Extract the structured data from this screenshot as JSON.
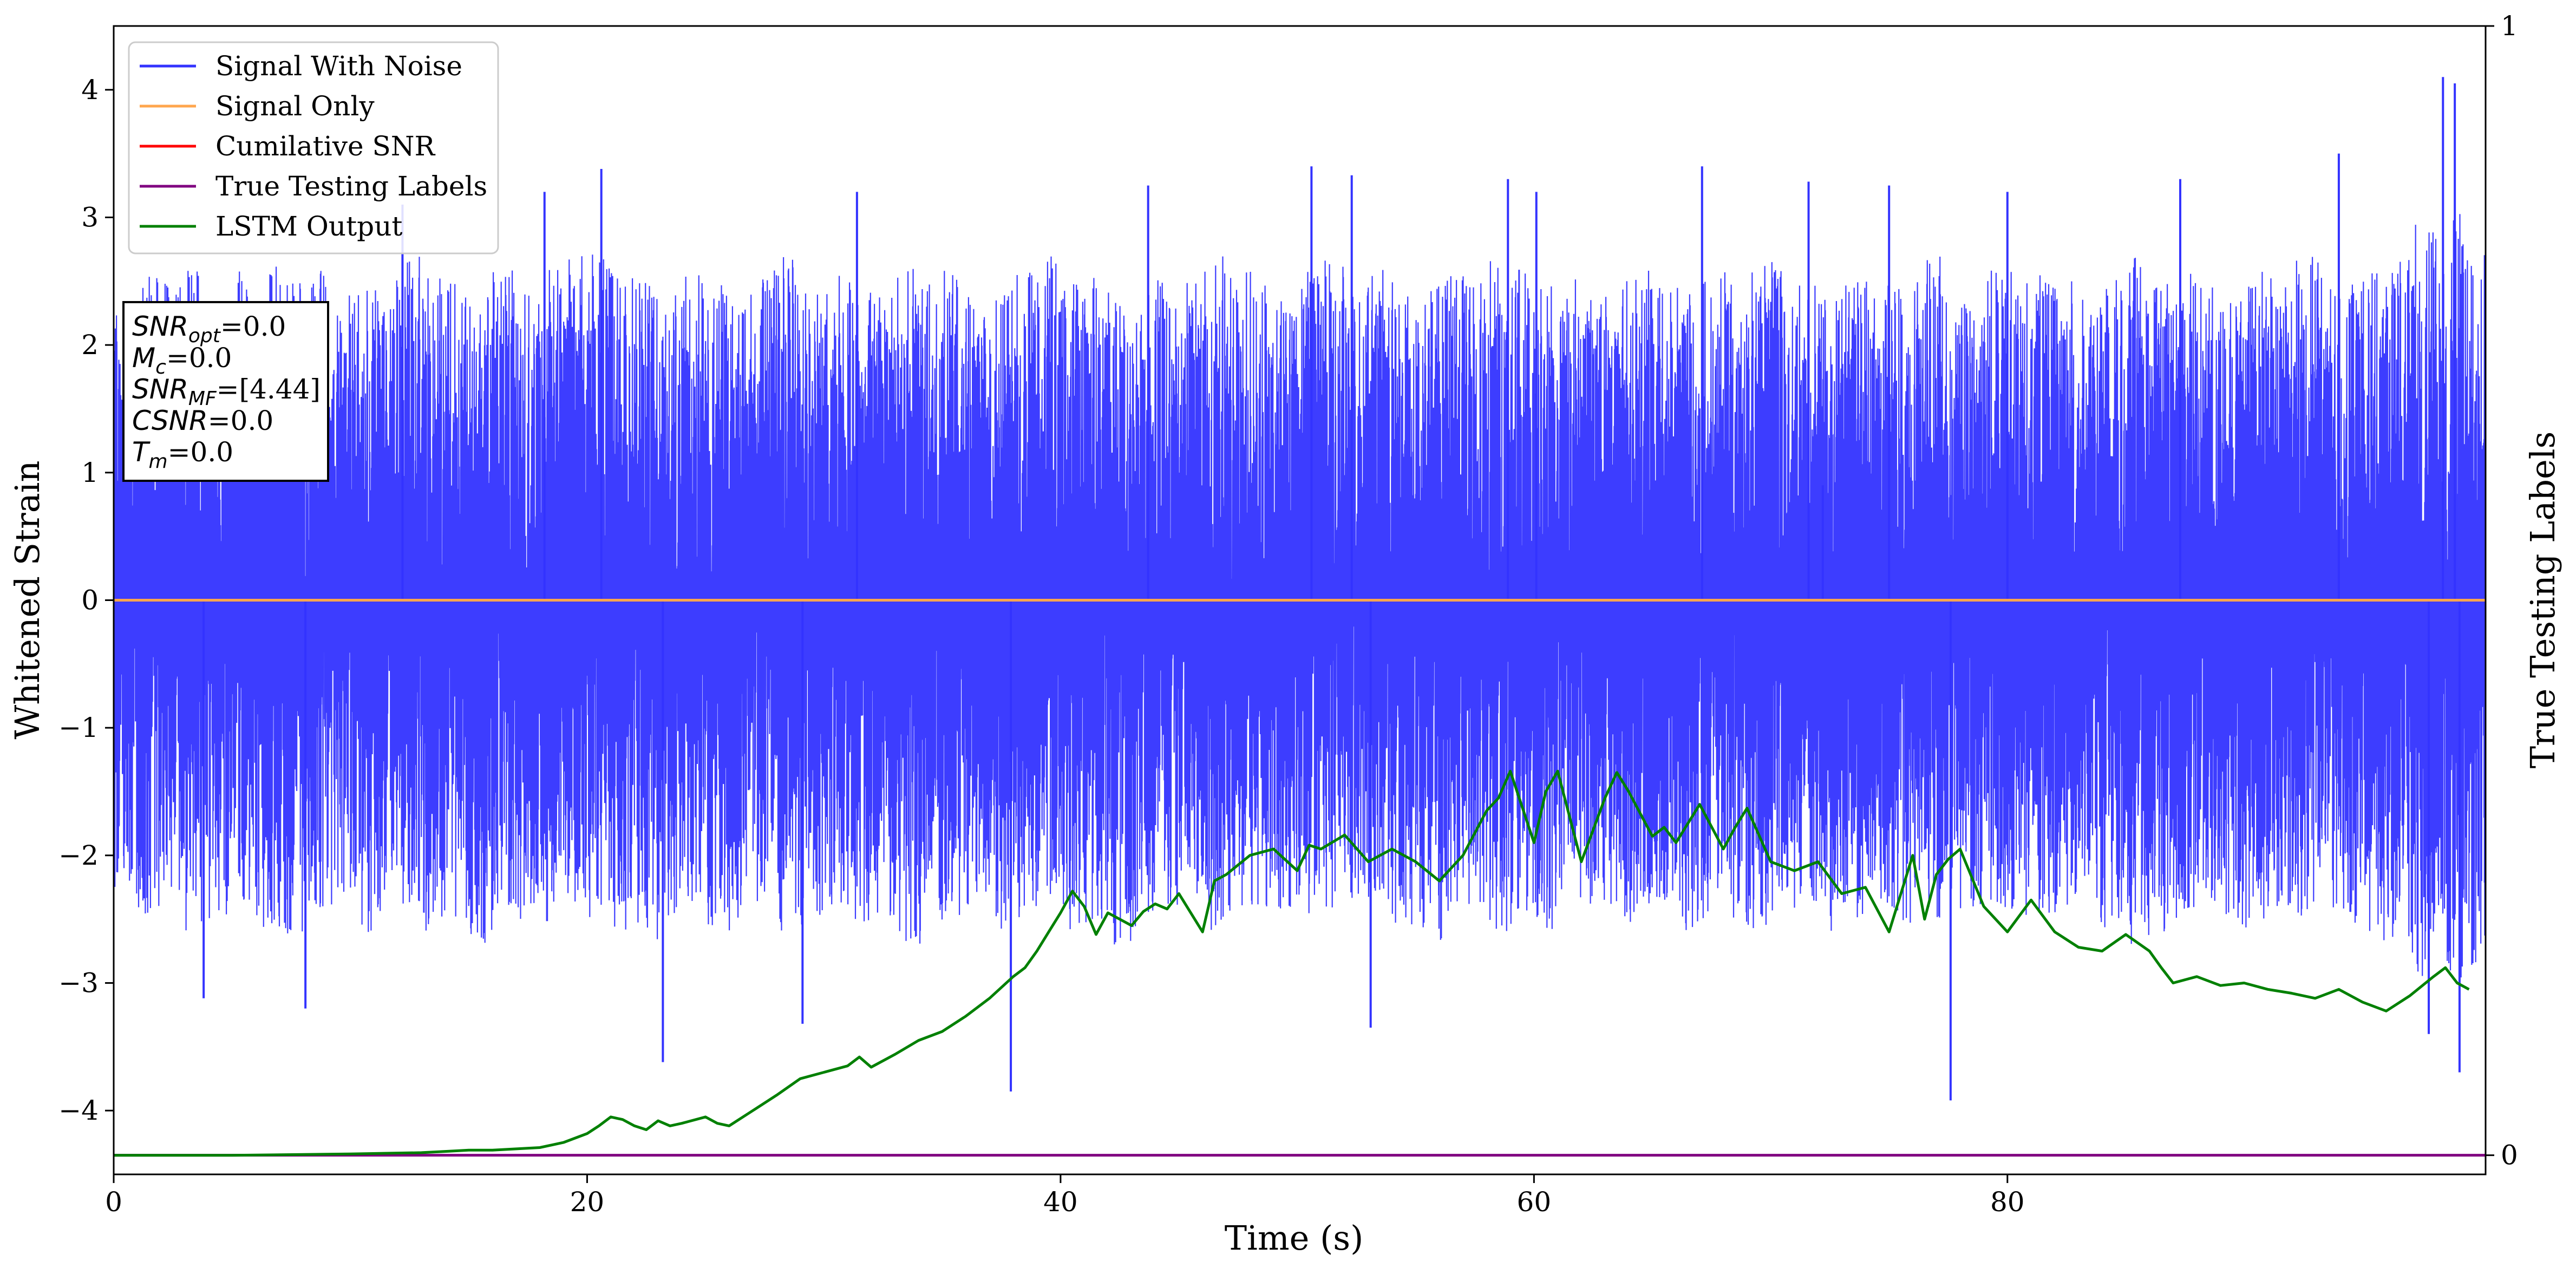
{
  "chart_data": {
    "type": "line",
    "title": "",
    "xlabel": "Time (s)",
    "ylabel": "Whitened Strain",
    "ylabel_right": "True Testing Labels",
    "xlim": [
      0,
      100.2
    ],
    "ylim": [
      -4.5,
      4.5
    ],
    "ylim_right": [
      0,
      1
    ],
    "x_ticks": [
      0,
      20,
      40,
      60,
      80
    ],
    "y_ticks": [
      -4,
      -3,
      -2,
      -1,
      0,
      1,
      2,
      3,
      4
    ],
    "y_ticks_right": [
      0,
      1
    ],
    "grid": false,
    "legend_position": "upper-left",
    "legend": [
      {
        "label": "Signal With Noise",
        "color": "#3333ff"
      },
      {
        "label": "Signal Only",
        "color": "#ffa64d"
      },
      {
        "label": "Cumilative SNR",
        "color": "#ff0000"
      },
      {
        "label": "True Testing Labels",
        "color": "#800080"
      },
      {
        "label": "LSTM Output",
        "color": "#008000"
      }
    ],
    "annotations": [
      {
        "base": "SNR",
        "sub": "opt",
        "value": "=0.0"
      },
      {
        "base": "M",
        "sub": "c",
        "value": "=0.0"
      },
      {
        "base": "SNR",
        "sub": "MF",
        "value": "=[4.44]"
      },
      {
        "base": "CSNR",
        "sub": "",
        "value": "=0.0"
      },
      {
        "base": "T",
        "sub": "m",
        "value": "=0.0"
      }
    ],
    "series": [
      {
        "name": "Signal With Noise",
        "axis": "left",
        "color": "#3333ff",
        "x_range": [
          0,
          100.2
        ],
        "envelope_upper": [
          2.3,
          2.6,
          2.5,
          2.6,
          2.4,
          2.6,
          2.7,
          2.5,
          2.6,
          2.4,
          2.5,
          2.6,
          2.7,
          2.6,
          2.5,
          2.4,
          2.6,
          2.5,
          2.6,
          2.7,
          2.8,
          2.6,
          2.5,
          2.4,
          2.6,
          2.5,
          2.4,
          2.6,
          2.7,
          2.5,
          2.6,
          2.5,
          2.4,
          2.6,
          2.5,
          2.6,
          2.4,
          2.5,
          2.6,
          2.7,
          2.5,
          2.6,
          2.5,
          2.4,
          2.6,
          2.5,
          2.7,
          2.6,
          2.5,
          2.4,
          2.6,
          2.7,
          2.5,
          2.6,
          2.4,
          2.5,
          2.6,
          2.5,
          2.7,
          2.6,
          2.5,
          2.6,
          2.4,
          2.5,
          2.6,
          2.5,
          2.4,
          2.6,
          2.5,
          2.7,
          2.6,
          2.5,
          2.4,
          2.6,
          2.5,
          2.6,
          2.7,
          2.5,
          2.4,
          2.6,
          2.5,
          2.6,
          2.5,
          2.4,
          2.6,
          2.7,
          2.5,
          2.6,
          2.5,
          2.4,
          2.6,
          2.5,
          2.7,
          2.6,
          2.5,
          2.6,
          2.7,
          3.0,
          3.1,
          2.8
        ],
        "envelope_lower": [
          -2.3,
          -2.5,
          -2.4,
          -2.6,
          -2.5,
          -2.4,
          -2.6,
          -2.7,
          -2.5,
          -2.4,
          -2.6,
          -2.5,
          -2.4,
          -2.6,
          -2.5,
          -2.7,
          -2.4,
          -2.5,
          -2.6,
          -2.4,
          -2.5,
          -2.6,
          -2.7,
          -2.5,
          -2.4,
          -2.6,
          -2.5,
          -2.4,
          -2.6,
          -2.5,
          -2.4,
          -2.6,
          -2.5,
          -2.7,
          -2.6,
          -2.5,
          -2.4,
          -2.6,
          -2.5,
          -2.4,
          -2.6,
          -2.5,
          -2.7,
          -2.6,
          -2.5,
          -2.4,
          -2.6,
          -2.5,
          -2.4,
          -2.6,
          -2.5,
          -2.6,
          -2.4,
          -2.5,
          -2.6,
          -2.7,
          -2.5,
          -2.4,
          -2.6,
          -2.5,
          -2.6,
          -2.4,
          -2.5,
          -2.6,
          -2.5,
          -2.4,
          -2.6,
          -2.5,
          -2.7,
          -2.6,
          -2.5,
          -2.4,
          -2.6,
          -2.5,
          -2.4,
          -2.6,
          -2.5,
          -2.6,
          -2.4,
          -2.5,
          -2.6,
          -2.5,
          -2.4,
          -2.6,
          -2.5,
          -2.7,
          -2.6,
          -2.5,
          -2.4,
          -2.6,
          -2.5,
          -2.4,
          -2.6,
          -2.5,
          -2.6,
          -2.7,
          -2.8,
          -3.0,
          -3.1,
          -2.9
        ],
        "peaks": [
          {
            "x": 3.8,
            "y": -3.12
          },
          {
            "x": 8.1,
            "y": -3.2
          },
          {
            "x": 12.2,
            "y": 3.1
          },
          {
            "x": 18.2,
            "y": 3.2
          },
          {
            "x": 20.6,
            "y": 3.38
          },
          {
            "x": 23.2,
            "y": -3.62
          },
          {
            "x": 29.1,
            "y": -3.32
          },
          {
            "x": 31.4,
            "y": 3.2
          },
          {
            "x": 37.9,
            "y": -3.85
          },
          {
            "x": 43.7,
            "y": 3.25
          },
          {
            "x": 50.6,
            "y": 3.4
          },
          {
            "x": 52.3,
            "y": 3.33
          },
          {
            "x": 53.1,
            "y": -3.35
          },
          {
            "x": 58.9,
            "y": 3.3
          },
          {
            "x": 60.1,
            "y": 3.2
          },
          {
            "x": 67.1,
            "y": 3.4
          },
          {
            "x": 71.6,
            "y": 3.28
          },
          {
            "x": 72.2,
            "y": 0.9
          },
          {
            "x": 75.0,
            "y": 3.25
          },
          {
            "x": 77.6,
            "y": -3.92
          },
          {
            "x": 80.0,
            "y": 3.2
          },
          {
            "x": 87.3,
            "y": 3.3
          },
          {
            "x": 94.0,
            "y": 3.5
          },
          {
            "x": 98.4,
            "y": 4.1
          },
          {
            "x": 98.9,
            "y": 4.05
          },
          {
            "x": 99.1,
            "y": -3.7
          },
          {
            "x": 97.8,
            "y": -3.4
          }
        ]
      },
      {
        "name": "Signal Only",
        "axis": "left",
        "color": "#ffa64d",
        "x": [
          0,
          100.2
        ],
        "y": [
          0,
          0
        ]
      },
      {
        "name": "True Testing Labels",
        "axis": "right",
        "color": "#800080",
        "x": [
          0,
          100.2
        ],
        "y": [
          0,
          0
        ]
      },
      {
        "name": "LSTM Output",
        "axis": "left",
        "color": "#008000",
        "x": [
          0,
          5,
          10,
          13,
          14,
          15,
          16,
          17,
          18,
          19,
          20,
          20.5,
          21,
          21.5,
          22,
          22.5,
          23,
          23.5,
          24,
          25,
          25.5,
          26,
          27,
          28,
          29,
          30,
          31,
          31.5,
          32,
          33,
          34,
          35,
          36,
          37,
          38,
          38.5,
          39,
          39.5,
          40,
          40.5,
          41,
          41.5,
          42,
          42.5,
          43,
          43.5,
          44,
          44.5,
          45,
          45.5,
          46,
          46.5,
          47,
          48,
          49,
          50,
          50.5,
          51,
          52,
          53,
          54,
          55,
          56,
          57,
          58,
          58.5,
          59,
          60,
          60.5,
          61,
          62,
          63,
          63.5,
          64,
          65,
          65.5,
          66,
          67,
          68,
          68.5,
          69,
          70,
          71,
          72,
          73,
          74,
          75,
          76,
          76.5,
          77,
          77.5,
          78,
          79,
          80,
          81,
          82,
          83,
          84,
          85,
          86,
          86.5,
          87,
          88,
          89,
          90,
          91,
          92,
          93,
          94,
          95,
          96,
          97,
          98,
          98.5,
          99,
          99.5
        ],
        "y": [
          -4.35,
          -4.35,
          -4.34,
          -4.33,
          -4.32,
          -4.31,
          -4.31,
          -4.3,
          -4.29,
          -4.25,
          -4.18,
          -4.12,
          -4.05,
          -4.07,
          -4.12,
          -4.15,
          -4.08,
          -4.12,
          -4.1,
          -4.05,
          -4.1,
          -4.12,
          -4.0,
          -3.88,
          -3.75,
          -3.7,
          -3.65,
          -3.58,
          -3.66,
          -3.56,
          -3.45,
          -3.38,
          -3.26,
          -3.12,
          -2.95,
          -2.88,
          -2.75,
          -2.6,
          -2.45,
          -2.28,
          -2.4,
          -2.62,
          -2.45,
          -2.5,
          -2.55,
          -2.44,
          -2.38,
          -2.42,
          -2.3,
          -2.45,
          -2.6,
          -2.2,
          -2.15,
          -2.0,
          -1.95,
          -2.12,
          -1.92,
          -1.95,
          -1.84,
          -2.05,
          -1.95,
          -2.05,
          -2.2,
          -2.0,
          -1.65,
          -1.55,
          -1.34,
          -1.9,
          -1.5,
          -1.34,
          -2.05,
          -1.55,
          -1.35,
          -1.5,
          -1.85,
          -1.78,
          -1.9,
          -1.6,
          -1.95,
          -1.78,
          -1.63,
          -2.05,
          -2.12,
          -2.05,
          -2.3,
          -2.25,
          -2.6,
          -2.0,
          -2.5,
          -2.15,
          -2.03,
          -1.95,
          -2.4,
          -2.6,
          -2.35,
          -2.6,
          -2.72,
          -2.75,
          -2.62,
          -2.75,
          -2.88,
          -3.0,
          -2.95,
          -3.02,
          -3.0,
          -3.05,
          -3.08,
          -3.12,
          -3.05,
          -3.15,
          -3.22,
          -3.1,
          -2.95,
          -2.88,
          -3.0,
          -3.05
        ]
      }
    ]
  }
}
